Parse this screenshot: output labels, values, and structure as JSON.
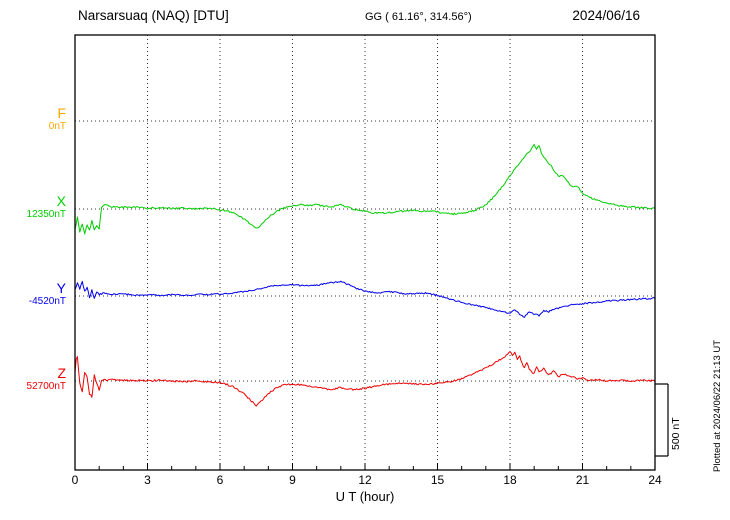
{
  "header": {
    "station": "Narsarsuaq (NAQ)  [DTU]",
    "coords": "GG ( 61.16°, 314.56°)",
    "date": "2024/06/16"
  },
  "axis": {
    "x_label": "U T (hour)",
    "x_ticks": [
      0,
      3,
      6,
      9,
      12,
      15,
      18,
      21,
      24
    ],
    "x_minor_tick_every": 1,
    "x_range": [
      0,
      24
    ]
  },
  "scale_bar": {
    "label": "500 nT"
  },
  "footer_note": "Plotted at 2024/06/22 21:13 UT",
  "chart_data": {
    "type": "line",
    "title": "Narsarsuaq (NAQ) [DTU] magnetogram 2024/06/16",
    "xlabel": "U T (hour)",
    "x_unit": "hour UT",
    "scale_bar_nT": 500,
    "grid": "dotted baselines and 3-hour vertical gridlines",
    "series": [
      {
        "name": "F",
        "color": "#FFA500",
        "baseline_label": "0nT",
        "noise_nT": 0,
        "points": []
      },
      {
        "name": "X",
        "color": "#00CC00",
        "baseline_label": "12350nT",
        "noise_nT": 6,
        "points": [
          [
            0,
            -140
          ],
          [
            0.1,
            -60
          ],
          [
            0.2,
            -160
          ],
          [
            0.3,
            -100
          ],
          [
            0.4,
            -170
          ],
          [
            0.5,
            -110
          ],
          [
            0.6,
            -150
          ],
          [
            0.7,
            -80
          ],
          [
            0.8,
            -150
          ],
          [
            0.9,
            -120
          ],
          [
            1,
            -140
          ],
          [
            1.1,
            15
          ],
          [
            1.3,
            30
          ],
          [
            1.5,
            15
          ],
          [
            2,
            12
          ],
          [
            2.5,
            15
          ],
          [
            3,
            6
          ],
          [
            3.5,
            10
          ],
          [
            4,
            5
          ],
          [
            4.5,
            6
          ],
          [
            5,
            2
          ],
          [
            5.5,
            5
          ],
          [
            6,
            -4
          ],
          [
            6.3,
            -15
          ],
          [
            6.6,
            -30
          ],
          [
            7,
            -70
          ],
          [
            7.3,
            -110
          ],
          [
            7.5,
            -135
          ],
          [
            7.7,
            -110
          ],
          [
            8,
            -60
          ],
          [
            8.3,
            -20
          ],
          [
            8.6,
            5
          ],
          [
            9,
            20
          ],
          [
            9.3,
            30
          ],
          [
            9.6,
            25
          ],
          [
            10,
            30
          ],
          [
            10.3,
            20
          ],
          [
            10.6,
            15
          ],
          [
            11,
            30
          ],
          [
            11.3,
            10
          ],
          [
            11.6,
            -5
          ],
          [
            12,
            -15
          ],
          [
            12.3,
            -25
          ],
          [
            12.6,
            -30
          ],
          [
            13,
            -25
          ],
          [
            13.5,
            -15
          ],
          [
            14,
            -10
          ],
          [
            14.5,
            -15
          ],
          [
            15,
            -20
          ],
          [
            15.3,
            -30
          ],
          [
            15.6,
            -35
          ],
          [
            16,
            -30
          ],
          [
            16.3,
            -20
          ],
          [
            16.6,
            -5
          ],
          [
            17,
            30
          ],
          [
            17.3,
            80
          ],
          [
            17.6,
            140
          ],
          [
            18,
            230
          ],
          [
            18.3,
            300
          ],
          [
            18.5,
            340
          ],
          [
            18.7,
            380
          ],
          [
            18.9,
            420
          ],
          [
            19,
            450
          ],
          [
            19.1,
            415
          ],
          [
            19.2,
            440
          ],
          [
            19.3,
            390
          ],
          [
            19.5,
            340
          ],
          [
            19.7,
            300
          ],
          [
            20,
            225
          ],
          [
            20.2,
            235
          ],
          [
            20.4,
            185
          ],
          [
            20.6,
            150
          ],
          [
            20.8,
            160
          ],
          [
            21,
            110
          ],
          [
            21.3,
            80
          ],
          [
            21.6,
            60
          ],
          [
            22,
            40
          ],
          [
            22.5,
            25
          ],
          [
            23,
            15
          ],
          [
            23.5,
            10
          ],
          [
            24,
            5
          ]
        ]
      },
      {
        "name": "Y",
        "color": "#0000EE",
        "baseline_label": "-4520nT",
        "noise_nT": 5,
        "points": [
          [
            0,
            40
          ],
          [
            0.1,
            90
          ],
          [
            0.2,
            50
          ],
          [
            0.3,
            100
          ],
          [
            0.4,
            30
          ],
          [
            0.5,
            60
          ],
          [
            0.6,
            -10
          ],
          [
            0.7,
            40
          ],
          [
            0.8,
            -20
          ],
          [
            0.9,
            30
          ],
          [
            1,
            10
          ],
          [
            1.2,
            20
          ],
          [
            1.5,
            10
          ],
          [
            2,
            15
          ],
          [
            2.5,
            5
          ],
          [
            3,
            10
          ],
          [
            3.5,
            5
          ],
          [
            4,
            10
          ],
          [
            4.5,
            5
          ],
          [
            5,
            10
          ],
          [
            5.5,
            10
          ],
          [
            6,
            15
          ],
          [
            6.5,
            20
          ],
          [
            7,
            30
          ],
          [
            7.5,
            45
          ],
          [
            8,
            65
          ],
          [
            8.5,
            75
          ],
          [
            9,
            80
          ],
          [
            9.5,
            70
          ],
          [
            10,
            75
          ],
          [
            10.5,
            90
          ],
          [
            11,
            100
          ],
          [
            11.3,
            80
          ],
          [
            11.6,
            55
          ],
          [
            12,
            35
          ],
          [
            12.3,
            25
          ],
          [
            12.6,
            20
          ],
          [
            13,
            30
          ],
          [
            13.3,
            25
          ],
          [
            13.6,
            15
          ],
          [
            14,
            15
          ],
          [
            14.5,
            20
          ],
          [
            15,
            5
          ],
          [
            15.3,
            -10
          ],
          [
            15.6,
            -25
          ],
          [
            16,
            -45
          ],
          [
            16.3,
            -55
          ],
          [
            16.6,
            -65
          ],
          [
            17,
            -80
          ],
          [
            17.3,
            -95
          ],
          [
            17.6,
            -105
          ],
          [
            18,
            -120
          ],
          [
            18.2,
            -95
          ],
          [
            18.4,
            -130
          ],
          [
            18.6,
            -145
          ],
          [
            18.8,
            -110
          ],
          [
            19,
            -125
          ],
          [
            19.2,
            -135
          ],
          [
            19.4,
            -100
          ],
          [
            19.6,
            -110
          ],
          [
            19.8,
            -90
          ],
          [
            20,
            -85
          ],
          [
            20.3,
            -70
          ],
          [
            20.6,
            -60
          ],
          [
            21,
            -55
          ],
          [
            21.5,
            -45
          ],
          [
            22,
            -35
          ],
          [
            22.5,
            -30
          ],
          [
            23,
            -25
          ],
          [
            23.5,
            -20
          ],
          [
            24,
            -15
          ]
        ]
      },
      {
        "name": "Z",
        "color": "#EE0000",
        "baseline_label": "52700nT",
        "noise_nT": 6,
        "points": [
          [
            0,
            60
          ],
          [
            0.05,
            150
          ],
          [
            0.1,
            170
          ],
          [
            0.2,
            -20
          ],
          [
            0.3,
            -70
          ],
          [
            0.4,
            60
          ],
          [
            0.5,
            30
          ],
          [
            0.6,
            -90
          ],
          [
            0.7,
            -110
          ],
          [
            0.8,
            40
          ],
          [
            0.9,
            -20
          ],
          [
            1,
            -60
          ],
          [
            1.1,
            10
          ],
          [
            1.3,
            5
          ],
          [
            1.5,
            10
          ],
          [
            2,
            5
          ],
          [
            2.5,
            5
          ],
          [
            3,
            0
          ],
          [
            3.5,
            5
          ],
          [
            4,
            0
          ],
          [
            4.5,
            -5
          ],
          [
            5,
            0
          ],
          [
            5.5,
            -5
          ],
          [
            6,
            -10
          ],
          [
            6.3,
            -25
          ],
          [
            6.6,
            -45
          ],
          [
            7,
            -90
          ],
          [
            7.3,
            -140
          ],
          [
            7.5,
            -170
          ],
          [
            7.7,
            -140
          ],
          [
            8,
            -90
          ],
          [
            8.3,
            -50
          ],
          [
            8.6,
            -30
          ],
          [
            9,
            -20
          ],
          [
            9.5,
            -30
          ],
          [
            10,
            -45
          ],
          [
            10.5,
            -60
          ],
          [
            11,
            -45
          ],
          [
            11.3,
            -55
          ],
          [
            11.6,
            -60
          ],
          [
            12,
            -50
          ],
          [
            12.3,
            -40
          ],
          [
            12.6,
            -30
          ],
          [
            13,
            -20
          ],
          [
            13.5,
            -15
          ],
          [
            14,
            -20
          ],
          [
            14.5,
            -25
          ],
          [
            15,
            -15
          ],
          [
            15.5,
            -5
          ],
          [
            16,
            15
          ],
          [
            16.3,
            35
          ],
          [
            16.6,
            60
          ],
          [
            17,
            90
          ],
          [
            17.3,
            120
          ],
          [
            17.6,
            150
          ],
          [
            17.8,
            170
          ],
          [
            18,
            200
          ],
          [
            18.1,
            180
          ],
          [
            18.2,
            195
          ],
          [
            18.3,
            150
          ],
          [
            18.4,
            170
          ],
          [
            18.5,
            120
          ],
          [
            18.6,
            90
          ],
          [
            18.7,
            130
          ],
          [
            18.8,
            80
          ],
          [
            19,
            50
          ],
          [
            19.1,
            100
          ],
          [
            19.2,
            60
          ],
          [
            19.4,
            90
          ],
          [
            19.6,
            40
          ],
          [
            19.8,
            70
          ],
          [
            20,
            30
          ],
          [
            20.2,
            50
          ],
          [
            20.5,
            35
          ],
          [
            20.8,
            15
          ],
          [
            21,
            20
          ],
          [
            21.3,
            5
          ],
          [
            21.6,
            10
          ],
          [
            22,
            0
          ],
          [
            22.5,
            5
          ],
          [
            23,
            0
          ],
          [
            23.5,
            5
          ],
          [
            24,
            0
          ]
        ]
      }
    ]
  }
}
